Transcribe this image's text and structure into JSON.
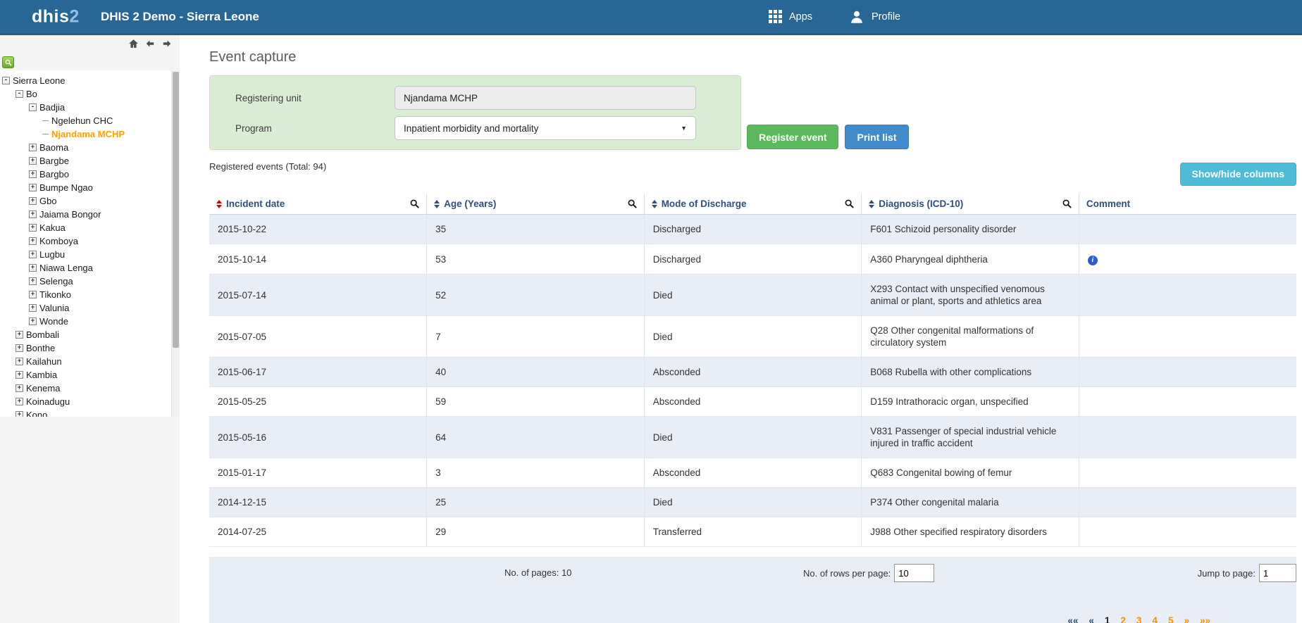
{
  "header": {
    "logo_text": "dhis",
    "logo_accent": "2",
    "title": "DHIS 2 Demo - Sierra Leone",
    "apps_label": "Apps",
    "profile_label": "Profile"
  },
  "sidebar": {
    "tree": [
      {
        "label": "Sierra Leone",
        "level": 0,
        "state": "expanded"
      },
      {
        "label": "Bo",
        "level": 1,
        "state": "expanded"
      },
      {
        "label": "Badjia",
        "level": 2,
        "state": "expanded"
      },
      {
        "label": "Ngelehun CHC",
        "level": 3,
        "state": "leaf"
      },
      {
        "label": "Njandama MCHP",
        "level": 3,
        "state": "leaf",
        "selected": true
      },
      {
        "label": "Baoma",
        "level": 2,
        "state": "collapsed"
      },
      {
        "label": "Bargbe",
        "level": 2,
        "state": "collapsed"
      },
      {
        "label": "Bargbo",
        "level": 2,
        "state": "collapsed"
      },
      {
        "label": "Bumpe Ngao",
        "level": 2,
        "state": "collapsed"
      },
      {
        "label": "Gbo",
        "level": 2,
        "state": "collapsed"
      },
      {
        "label": "Jaiama Bongor",
        "level": 2,
        "state": "collapsed"
      },
      {
        "label": "Kakua",
        "level": 2,
        "state": "collapsed"
      },
      {
        "label": "Komboya",
        "level": 2,
        "state": "collapsed"
      },
      {
        "label": "Lugbu",
        "level": 2,
        "state": "collapsed"
      },
      {
        "label": "Niawa Lenga",
        "level": 2,
        "state": "collapsed"
      },
      {
        "label": "Selenga",
        "level": 2,
        "state": "collapsed"
      },
      {
        "label": "Tikonko",
        "level": 2,
        "state": "collapsed"
      },
      {
        "label": "Valunia",
        "level": 2,
        "state": "collapsed"
      },
      {
        "label": "Wonde",
        "level": 2,
        "state": "collapsed"
      },
      {
        "label": "Bombali",
        "level": 1,
        "state": "collapsed"
      },
      {
        "label": "Bonthe",
        "level": 1,
        "state": "collapsed"
      },
      {
        "label": "Kailahun",
        "level": 1,
        "state": "collapsed"
      },
      {
        "label": "Kambia",
        "level": 1,
        "state": "collapsed"
      },
      {
        "label": "Kenema",
        "level": 1,
        "state": "collapsed"
      },
      {
        "label": "Koinadugu",
        "level": 1,
        "state": "collapsed"
      },
      {
        "label": "Kono",
        "level": 1,
        "state": "collapsed"
      }
    ]
  },
  "main": {
    "page_title": "Event capture",
    "form": {
      "registering_unit_label": "Registering unit",
      "registering_unit_value": "Njandama MCHP",
      "program_label": "Program",
      "program_value": "Inpatient morbidity and mortality"
    },
    "buttons": {
      "register_event": "Register event",
      "print_list": "Print list",
      "show_hide_columns": "Show/hide columns"
    },
    "registered_events_label": "Registered events (Total: 94)"
  },
  "table": {
    "columns": [
      {
        "label": "Incident date",
        "sortable": true,
        "sort_color": "#cc0000",
        "searchable": true
      },
      {
        "label": "Age (Years)",
        "sortable": true,
        "sort_color": "#2f4f7f",
        "searchable": true
      },
      {
        "label": "Mode of Discharge",
        "sortable": true,
        "sort_color": "#2f4f7f",
        "searchable": true
      },
      {
        "label": "Diagnosis (ICD-10)",
        "sortable": true,
        "sort_color": "#2f4f7f",
        "searchable": true
      },
      {
        "label": "Comment",
        "sortable": false,
        "sort_color": "",
        "searchable": false
      }
    ],
    "rows": [
      {
        "incident_date": "2015-10-22",
        "age": "35",
        "mode": "Discharged",
        "diagnosis": "F601 Schizoid personality disorder",
        "comment_info": false
      },
      {
        "incident_date": "2015-10-14",
        "age": "53",
        "mode": "Discharged",
        "diagnosis": "A360 Pharyngeal diphtheria",
        "comment_info": true
      },
      {
        "incident_date": "2015-07-14",
        "age": "52",
        "mode": "Died",
        "diagnosis": "X293 Contact with unspecified venomous animal or plant, sports and athletics area",
        "comment_info": false
      },
      {
        "incident_date": "2015-07-05",
        "age": "7",
        "mode": "Died",
        "diagnosis": "Q28 Other congenital malformations of circulatory system",
        "comment_info": false
      },
      {
        "incident_date": "2015-06-17",
        "age": "40",
        "mode": "Absconded",
        "diagnosis": "B068 Rubella with other complications",
        "comment_info": false
      },
      {
        "incident_date": "2015-05-25",
        "age": "59",
        "mode": "Absconded",
        "diagnosis": "D159 Intrathoracic organ, unspecified",
        "comment_info": false
      },
      {
        "incident_date": "2015-05-16",
        "age": "64",
        "mode": "Died",
        "diagnosis": "V831 Passenger of special industrial vehicle injured in traffic accident",
        "comment_info": false
      },
      {
        "incident_date": "2015-01-17",
        "age": "3",
        "mode": "Absconded",
        "diagnosis": "Q683 Congenital bowing of femur",
        "comment_info": false
      },
      {
        "incident_date": "2014-12-15",
        "age": "25",
        "mode": "Died",
        "diagnosis": "P374 Other congenital malaria",
        "comment_info": false
      },
      {
        "incident_date": "2014-07-25",
        "age": "29",
        "mode": "Transferred",
        "diagnosis": "J988 Other specified respiratory disorders",
        "comment_info": false
      }
    ]
  },
  "footer": {
    "pages_label": "No. of pages: 10",
    "rows_per_page_label": "No. of rows per page:",
    "rows_per_page_value": "10",
    "jump_label": "Jump to page:",
    "jump_value": "1",
    "pagination": [
      {
        "label": "««",
        "kind": "nav-first"
      },
      {
        "label": "«",
        "kind": "nav-prev"
      },
      {
        "label": "1",
        "kind": "current"
      },
      {
        "label": "2",
        "kind": "page"
      },
      {
        "label": "3",
        "kind": "page"
      },
      {
        "label": "4",
        "kind": "page"
      },
      {
        "label": "5",
        "kind": "page"
      },
      {
        "label": "»",
        "kind": "nav-next"
      },
      {
        "label": "»»",
        "kind": "nav-last"
      }
    ]
  },
  "colors": {
    "header_bg": "#276695",
    "selected_org_unit": "#ffa200",
    "selection_panel_bg": "#d9edd4",
    "register_button": "#5cb85c",
    "print_button": "#428bca",
    "show_hide_button": "#4cbcd9",
    "row_stripe": "#e9eef6",
    "pagination_orange": "#f39207",
    "sort_active_red": "#cc0000",
    "header_text_navy": "#2e4e7e",
    "info_icon_blue": "#2d5ec9"
  }
}
